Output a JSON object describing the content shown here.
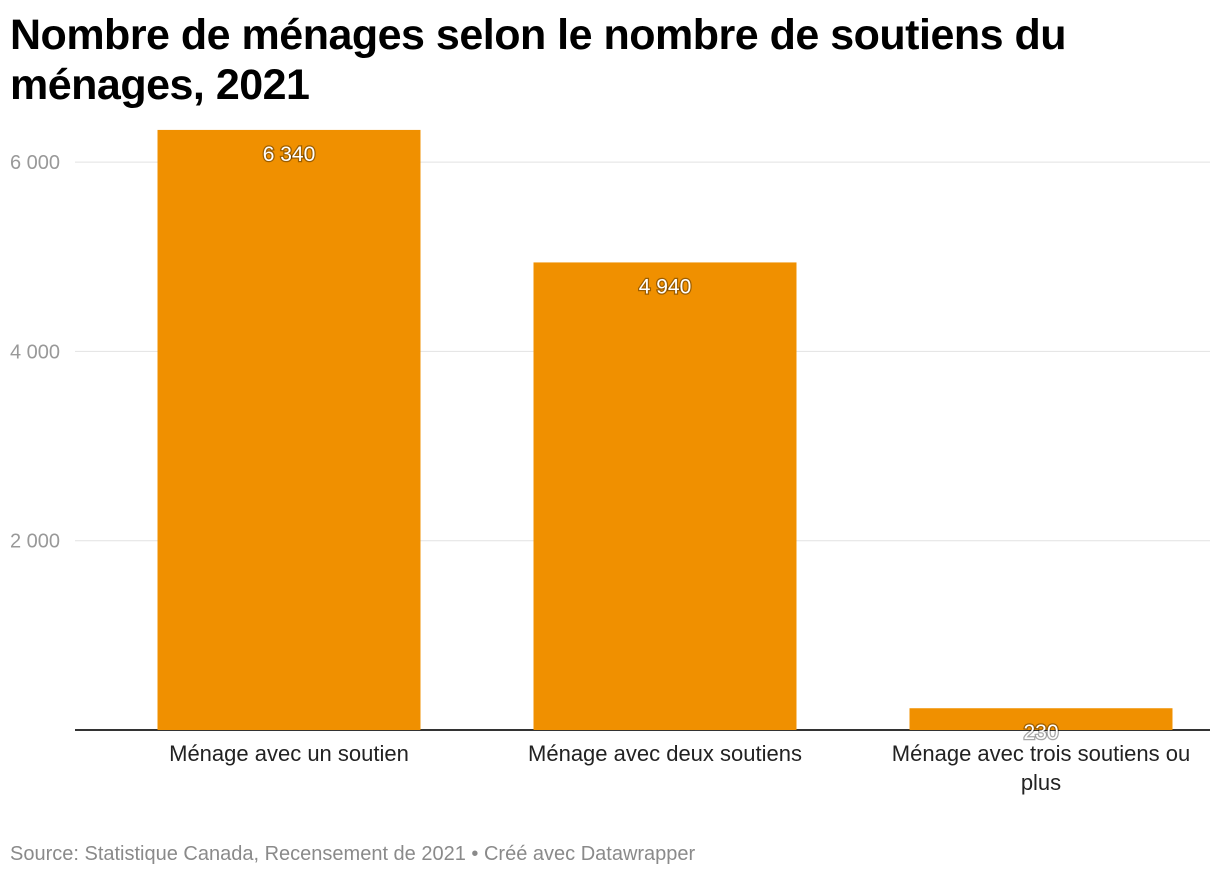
{
  "title": "Nombre de ménages selon le nombre de soutiens du ménages, 2021",
  "footer": {
    "source": "Source: Statistique Canada, Recensement de 2021",
    "separator": " • ",
    "credit": "Créé avec Datawrapper"
  },
  "colors": {
    "bar": "#f09000",
    "grid": "#e2e2e2",
    "axis": "#333333",
    "tick_label": "#999999",
    "value_label": "#ffffff",
    "category_label": "#222222",
    "footer": "#8a8a8a"
  },
  "chart_data": {
    "type": "bar",
    "categories": [
      "Ménage avec un soutien",
      "Ménage avec deux soutiens",
      "Ménage avec trois soutiens ou plus"
    ],
    "values": [
      6340,
      4940,
      230
    ],
    "value_labels": [
      "6 340",
      "4 940",
      "230"
    ],
    "yticks": [
      2000,
      4000,
      6000
    ],
    "ytick_labels": [
      "2 000",
      "4 000",
      "6 000"
    ],
    "ylim": [
      0,
      6340
    ],
    "grid": true,
    "legend": "none"
  }
}
